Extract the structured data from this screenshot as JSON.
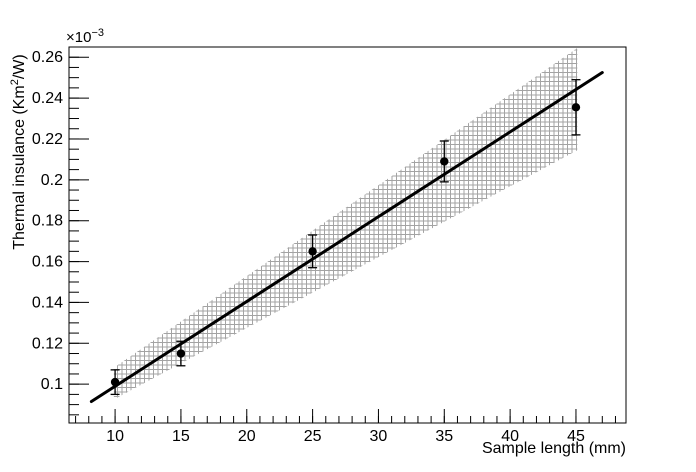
{
  "chart_data": {
    "type": "scatter",
    "title": "",
    "xlabel": "Sample length (mm)",
    "ylabel_prefix": "Thermal insulance (Km",
    "ylabel_sup": "2",
    "ylabel_suffix": "/W)",
    "y_multiplier_base": "×10",
    "y_multiplier_exp": "−3",
    "y_scale": "1e-3",
    "xlim": [
      6.5,
      48.8
    ],
    "ylim": [
      0.081,
      0.265
    ],
    "grid": false,
    "legend": null,
    "xticks": {
      "major": [
        10,
        15,
        20,
        25,
        30,
        35,
        40,
        45
      ],
      "labels": [
        "10",
        "15",
        "20",
        "25",
        "30",
        "35",
        "40",
        "45"
      ],
      "minor_step": 1
    },
    "yticks": {
      "major": [
        0.1,
        0.12,
        0.14,
        0.16,
        0.18,
        0.2,
        0.22,
        0.24,
        0.26
      ],
      "labels": [
        "0.1",
        "0.12",
        "0.14",
        "0.16",
        "0.18",
        "0.2",
        "0.22",
        "0.24",
        "0.26"
      ],
      "minor_step": 0.005
    },
    "series": [
      {
        "name": "measured-points",
        "marker": "filled-circle",
        "x": [
          10,
          15,
          25,
          35,
          45
        ],
        "y": [
          0.101,
          0.115,
          0.165,
          0.209,
          0.2355
        ],
        "yerr": [
          0.006,
          0.006,
          0.008,
          0.01,
          0.0135
        ]
      }
    ],
    "fit_line": {
      "x": [
        8.2,
        47.0
      ],
      "y": [
        0.0915,
        0.2525
      ]
    },
    "confidence_band": {
      "x": [
        9.9,
        45.1
      ],
      "top": [
        0.108,
        0.2645
      ],
      "bottom": [
        0.0925,
        0.2145
      ]
    },
    "colors": {
      "marker": "#000000",
      "fit_line": "#000000",
      "hatch": "#a3a3a3",
      "frame": "#000000",
      "background": "#ffffff"
    }
  }
}
